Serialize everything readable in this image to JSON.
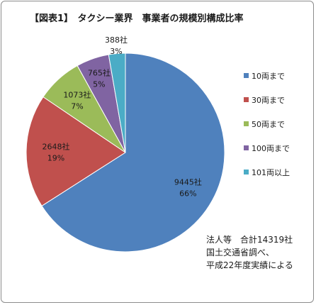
{
  "chart_data": {
    "type": "pie",
    "title": "【図表1】　タクシー業界　事業者の規模別構成比率",
    "categories": [
      "10両まで",
      "30両まで",
      "50両まで",
      "100両まで",
      "101両以上"
    ],
    "values": [
      9445,
      2648,
      1073,
      765,
      388
    ],
    "count_labels": [
      "9445社",
      "2648社",
      "1073社",
      "765社",
      "388社"
    ],
    "percent_labels": [
      "66%",
      "19%",
      "7%",
      "5%",
      "3%"
    ],
    "colors": [
      "#4f81bd",
      "#c0504d",
      "#9bbb59",
      "#8064a2",
      "#4bacc6"
    ],
    "legend_position": "right",
    "total": 14319
  },
  "note_lines": [
    "法人等　合計14319社",
    "国土交通省調べ、",
    "平成22年度実績による"
  ]
}
